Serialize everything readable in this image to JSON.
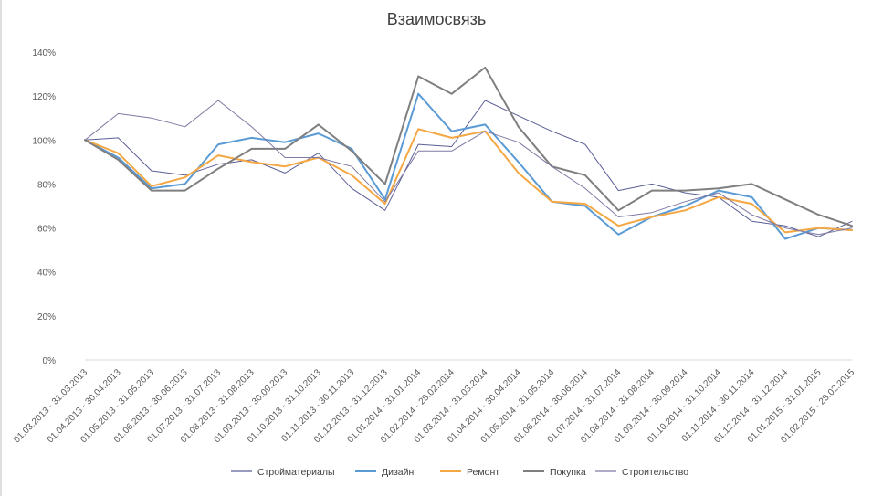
{
  "chart_data": {
    "type": "line",
    "title": "Взаимосвязь",
    "yticks": [
      "0%",
      "20%",
      "40%",
      "60%",
      "80%",
      "100%",
      "120%",
      "140%"
    ],
    "ylim": [
      0,
      140
    ],
    "grid": false,
    "legend_position": "bottom",
    "categories": [
      "01.03.2013 - 31.03.2013",
      "01.04.2013 - 30.04.2013",
      "01.05.2013 - 31.05.2013",
      "01.06.2013 - 30.06.2013",
      "01.07.2013 - 31.07.2013",
      "01.08.2013 - 31.08.2013",
      "01.09.2013 - 30.09.2013",
      "01.10.2013 - 31.10.2013",
      "01.11.2013 - 30.11.2013",
      "01.12.2013 - 31.12.2013",
      "01.01.2014 - 31.01.2014",
      "01.02.2014 - 28.02.2014",
      "01.03.2014 - 31.03.2014",
      "01.04.2014 - 30.04.2014",
      "01.05.2014 - 31.05.2014",
      "01.06.2014 - 30.06.2014",
      "01.07.2014 - 31.07.2014",
      "01.08.2014 - 31.08.2014",
      "01.09.2014 - 30.09.2014",
      "01.10.2014 - 31.10.2014",
      "01.11.2014 - 30.11.2014",
      "01.12.2014 - 31.12.2014",
      "01.01.2015 - 31.01.2015",
      "01.02.2015 - 28.02.2015"
    ],
    "series": [
      {
        "name": "Стройматериалы",
        "color": "#5b5f97",
        "width": 1,
        "values": [
          100,
          101,
          86,
          84,
          89,
          91,
          85,
          94,
          78,
          68,
          98,
          97,
          118,
          111,
          104,
          98,
          77,
          80,
          76,
          74,
          63,
          61,
          56,
          63
        ]
      },
      {
        "name": "Дизайн",
        "color": "#5b9bd5",
        "width": 2,
        "values": [
          100,
          92,
          78,
          80,
          98,
          101,
          99,
          103,
          96,
          73,
          121,
          104,
          107,
          90,
          72,
          70,
          57,
          65,
          70,
          77,
          74,
          55,
          60,
          59
        ]
      },
      {
        "name": "Ремонт",
        "color": "#f4a742",
        "width": 2,
        "values": [
          100,
          94,
          79,
          83,
          93,
          90,
          88,
          92,
          84,
          71,
          105,
          101,
          104,
          85,
          72,
          71,
          61,
          65,
          68,
          74,
          71,
          58,
          60,
          59
        ]
      },
      {
        "name": "Покупка",
        "color": "#7f7f7f",
        "width": 2,
        "values": [
          100,
          91,
          77,
          77,
          87,
          96,
          96,
          107,
          95,
          80,
          129,
          121,
          133,
          106,
          88,
          84,
          68,
          77,
          77,
          78,
          80,
          73,
          66,
          61
        ]
      },
      {
        "name": "Строительство",
        "color": "#7e7aa3",
        "width": 1,
        "values": [
          100,
          112,
          110,
          106,
          118,
          106,
          92,
          92,
          88,
          72,
          95,
          95,
          104,
          99,
          88,
          78,
          65,
          67,
          72,
          76,
          66,
          60,
          57,
          60
        ]
      }
    ]
  }
}
